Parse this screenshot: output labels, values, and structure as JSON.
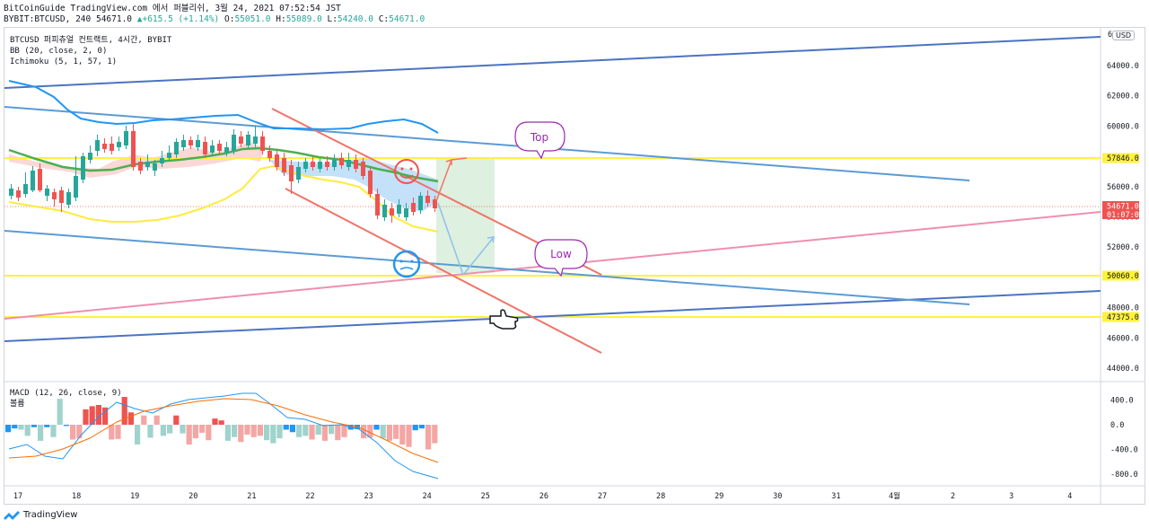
{
  "header": {
    "line1": "BitCoinGuide TradingView.com 에서 퍼블리쉬, 3월 24, 2021 07:52:54 JST",
    "line2_symbol": "BYBIT:BTCUSD, 240",
    "line2_last": "54671.0",
    "line2_change": "▲+615.5 (+1.14%)",
    "o_label": "O:",
    "o_value": "55051.0",
    "h_label": "H:",
    "h_value": "55089.0",
    "l_label": "L:",
    "l_value": "54240.0",
    "c_label": "C:",
    "c_value": "54671.0",
    "change_color": "#26a69a"
  },
  "legend": {
    "symbol": "BTCUSD 퍼피츄얼 컨트랙트, 4시간, BYBIT",
    "bb": "BB (20, close, 2, 0)",
    "ichimoku": "Ichimoku (5, 1, 57, 1)",
    "macd": "MACD (12, 26, close, 9)",
    "macd_sub": "볼륨"
  },
  "currency": "USD",
  "price_axis": [
    "64000.0",
    "62000.0",
    "60000.0",
    "58000.0",
    "56000.0",
    "54000.0",
    "52000.0",
    "50000.0",
    "48000.0",
    "46000.0",
    "44000.0"
  ],
  "price_axis_top": "6",
  "macd_axis": [
    "400.0",
    "0.0",
    "-400.0",
    "-800.0"
  ],
  "time_axis": [
    "17",
    "18",
    "19",
    "20",
    "21",
    "22",
    "23",
    "24",
    "25",
    "26",
    "27",
    "28",
    "29",
    "30",
    "31",
    "4월",
    "2",
    "3",
    "4"
  ],
  "price_labels": [
    {
      "name": "level-57846",
      "text": "57846.0",
      "bg": "#fff23d",
      "fg": "#131722"
    },
    {
      "name": "current-price",
      "text": "54671.0",
      "text2": "01:07:08",
      "bg": "#ef5350",
      "fg": "#ffffff"
    },
    {
      "name": "level-50060",
      "text": "50060.0",
      "bg": "#fff23d",
      "fg": "#131722"
    },
    {
      "name": "level-47375",
      "text": "47375.0",
      "bg": "#fff23d",
      "fg": "#131722"
    }
  ],
  "annotations": {
    "top": "Top",
    "low": "Low"
  },
  "colors": {
    "up": "#26a69a",
    "down": "#ef5350",
    "bb_upper": "#2196f3",
    "bb_mid": "#4caf50",
    "bb_lower": "#ffeb3b",
    "trend_blue": "#4a74c2",
    "trend_lightblue": "#5b9bd5",
    "trend_pink": "#ef8fb0",
    "channel_red": "#f07468",
    "level_yellow": "#fff23d",
    "note_purple": "#9c27b0",
    "macd_line": "#2196f3",
    "signal_line": "#ff6d00"
  },
  "footer": {
    "brand": "TradingView"
  }
}
